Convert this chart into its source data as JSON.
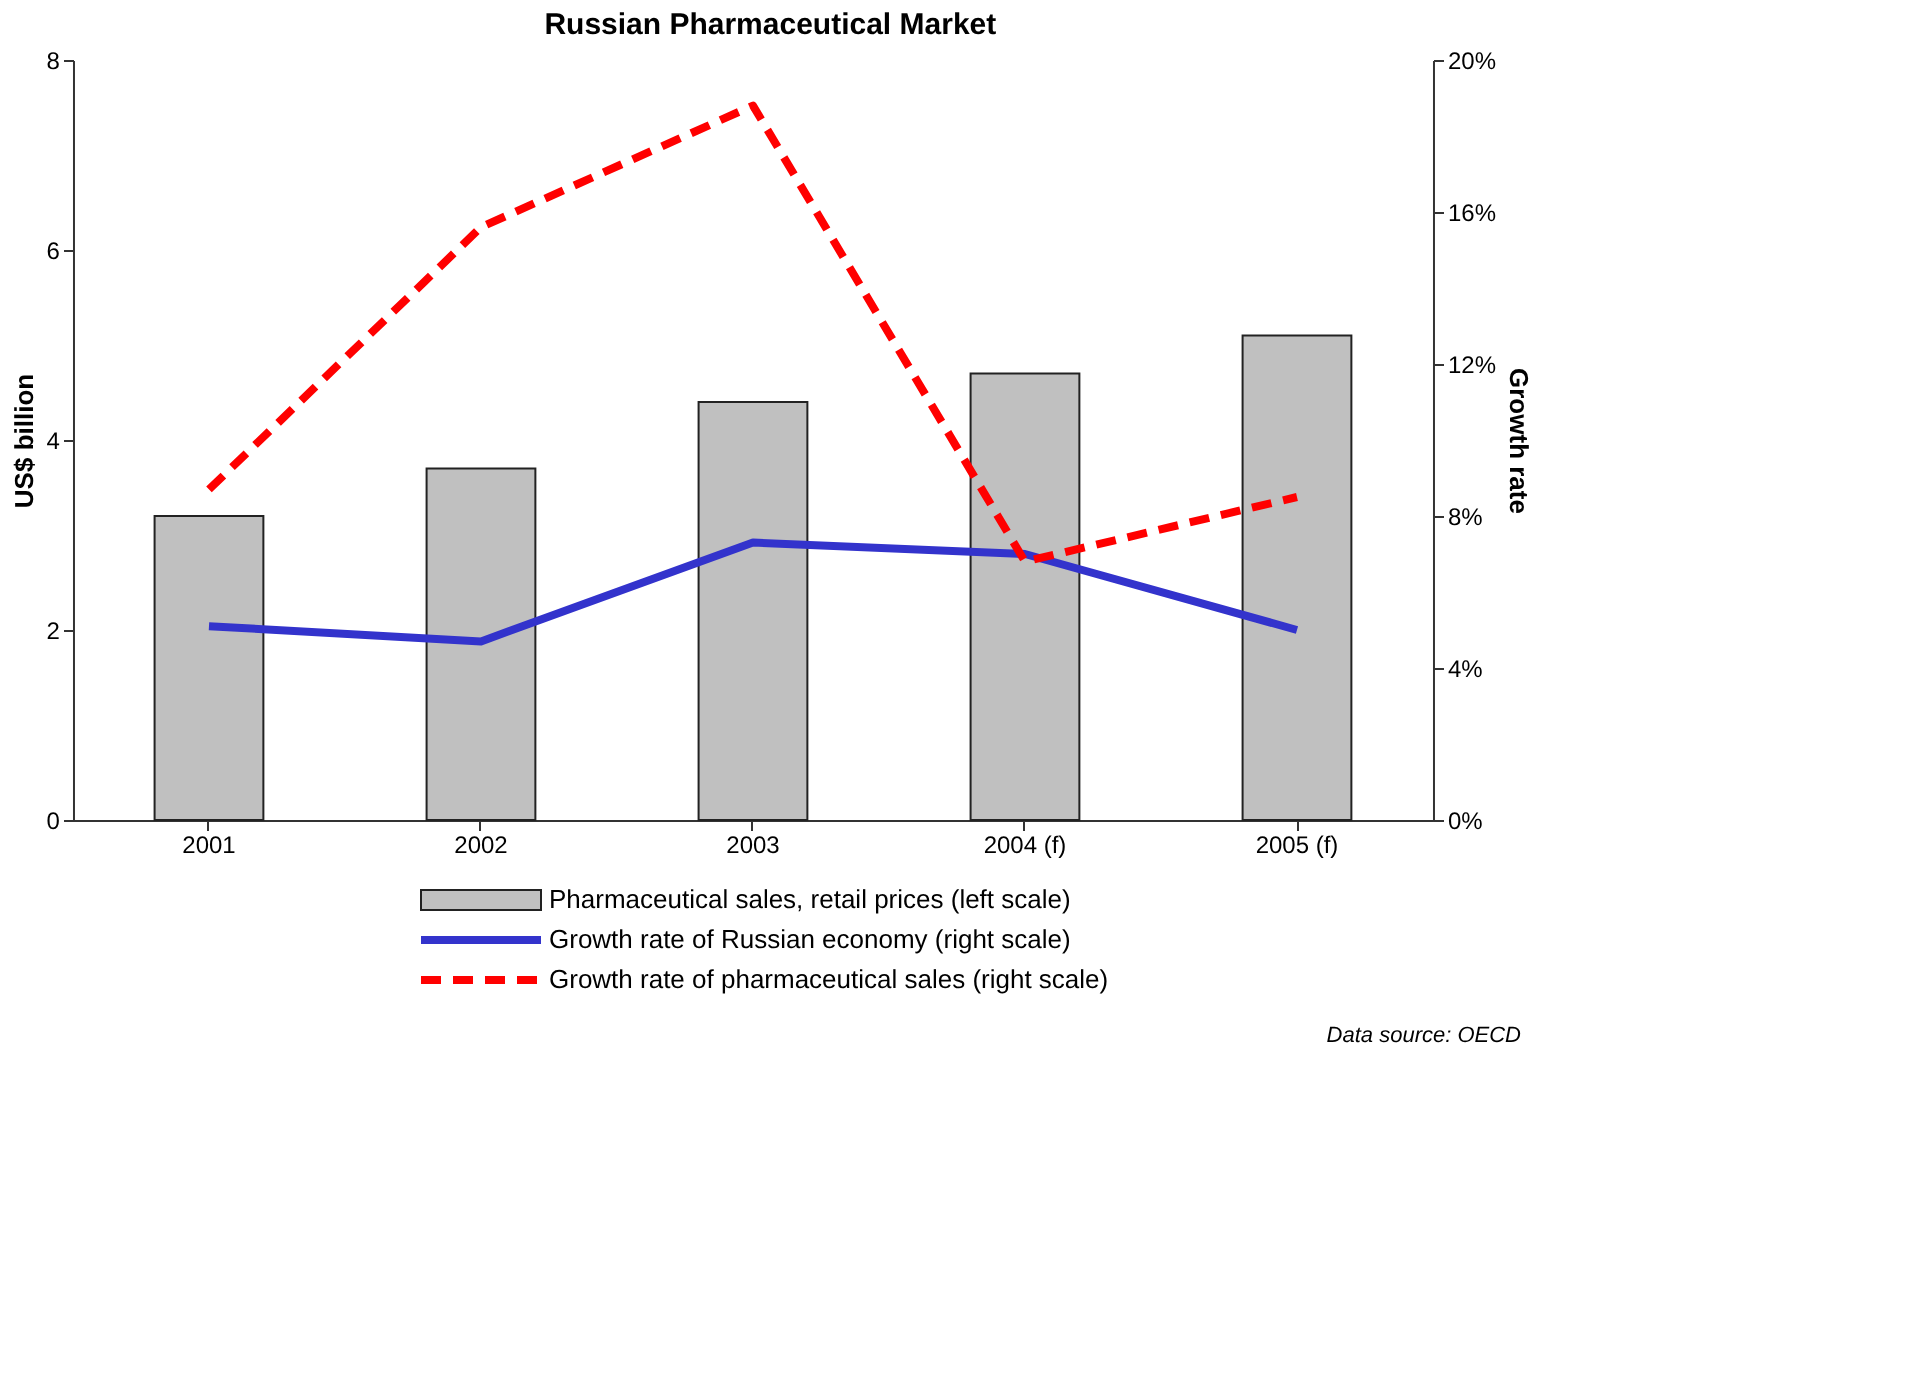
{
  "chart_data": {
    "type": "bar",
    "title": "Russian Pharmaceutical Market",
    "ylabel": "US$ billion",
    "y2label": "Growth rate",
    "categories": [
      "2001",
      "2002",
      "2003",
      "2004 (f)",
      "2005 (f)"
    ],
    "series": [
      {
        "name": "Pharmaceutical sales, retail prices (left scale)",
        "color": "#c0c0c0",
        "values": [
          3.2,
          3.7,
          4.4,
          4.7,
          5.1
        ]
      },
      {
        "name": "Growth rate of Russian economy (right scale)",
        "type": "line",
        "axis": "y2",
        "color": "#3333cc",
        "line_style": "solid",
        "values": [
          5.1,
          4.7,
          7.3,
          7.0,
          5.0
        ]
      },
      {
        "name": "Growth rate of pharmaceutical sales (right scale)",
        "type": "line",
        "axis": "y2",
        "color": "#ff0000",
        "line_style": "dashed",
        "values": [
          8.7,
          15.6,
          18.8,
          6.8,
          8.5
        ]
      }
    ],
    "ylim": [
      0,
      8
    ],
    "yticks": [
      0,
      2,
      4,
      6,
      8
    ],
    "y2lim": [
      0,
      20
    ],
    "y2ticks": [
      {
        "value": 0,
        "label": "0%"
      },
      {
        "value": 4,
        "label": "4%"
      },
      {
        "value": 8,
        "label": "8%"
      },
      {
        "value": 12,
        "label": "12%"
      },
      {
        "value": 16,
        "label": "16%"
      },
      {
        "value": 20,
        "label": "20%"
      }
    ],
    "grid": false,
    "legend": "bottom",
    "annotations": [
      "Data source: OECD"
    ]
  }
}
